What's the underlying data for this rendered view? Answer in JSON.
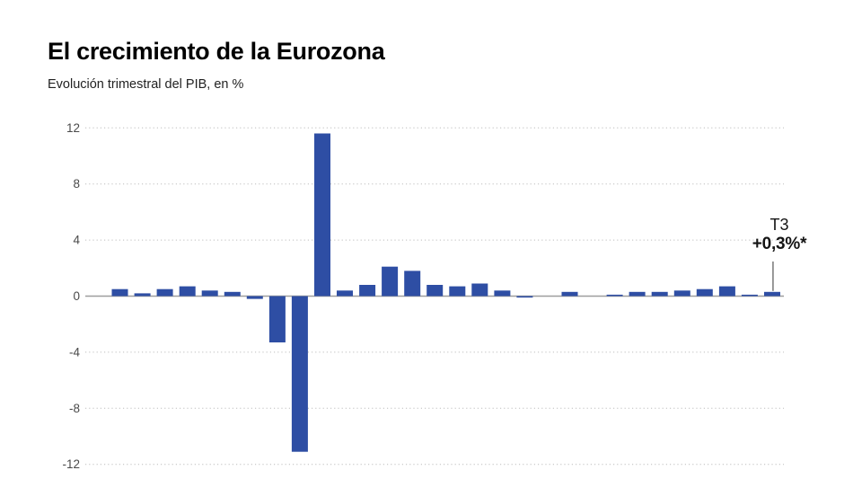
{
  "title": "El crecimiento de la Eurozona",
  "subtitle": "Evolución trimestral del PIB, en %",
  "annotation": {
    "quarter_label": "T3",
    "value_label": "+0,3%*"
  },
  "colors": {
    "bar": "#2e4ea4",
    "grid": "#bdbdbd",
    "zero_line": "#9e9e9e",
    "tick_label": "#4a4a4a",
    "annotation_text": "#141414",
    "annotation_line": "#333333",
    "background": "#ffffff"
  },
  "chart_data": {
    "type": "bar",
    "title": "El crecimiento de la Eurozona",
    "subtitle": "Evolución trimestral del PIB, en %",
    "xlabel": "",
    "ylabel": "",
    "unit": "%",
    "ylim": [
      -12,
      12
    ],
    "yticks": [
      12,
      8,
      4,
      0,
      -4,
      -8,
      -12
    ],
    "grid": "horizontal-dotted",
    "legend": "none",
    "x_tick_labels_visible": false,
    "values": [
      0.5,
      0.2,
      0.5,
      0.7,
      0.4,
      0.3,
      -0.2,
      -3.3,
      -11.1,
      11.6,
      0.4,
      0.8,
      2.1,
      1.8,
      0.8,
      0.7,
      0.9,
      0.4,
      -0.1,
      0.0,
      0.3,
      0.0,
      0.1,
      0.3,
      0.3,
      0.4,
      0.5,
      0.7,
      0.1,
      0.3
    ],
    "annotation": {
      "line1": "T3",
      "line2": "+0,3%*",
      "points_to": "last-bar"
    }
  }
}
